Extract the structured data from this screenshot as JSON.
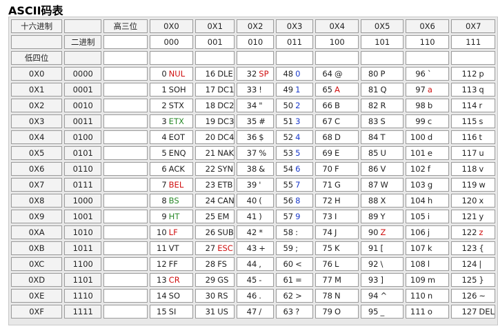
{
  "title": "ASCII码表",
  "colors": {
    "red": "#d01010",
    "green": "#2b8a2b",
    "blue": "#1a3acc"
  },
  "header": {
    "hex_label": "十六进制",
    "bin_label": "二进制",
    "high_label": "高三位",
    "low_label": "低四位",
    "columns": [
      {
        "hex": "0X0",
        "bin": "000"
      },
      {
        "hex": "0X1",
        "bin": "001"
      },
      {
        "hex": "0X2",
        "bin": "010"
      },
      {
        "hex": "0X3",
        "bin": "011"
      },
      {
        "hex": "0X4",
        "bin": "100"
      },
      {
        "hex": "0X5",
        "bin": "101"
      },
      {
        "hex": "0X6",
        "bin": "110"
      },
      {
        "hex": "0X7",
        "bin": "111"
      }
    ]
  },
  "rows": [
    {
      "hex": "0X0",
      "bin": "0000",
      "cells": [
        {
          "n": "0",
          "s": "NUL",
          "c": "red"
        },
        {
          "n": "16",
          "s": "DLE"
        },
        {
          "n": "32",
          "s": "SP",
          "c": "red"
        },
        {
          "n": "48",
          "s": "0",
          "c": "blue"
        },
        {
          "n": "64",
          "s": "@"
        },
        {
          "n": "80",
          "s": "P"
        },
        {
          "n": "96",
          "s": "`"
        },
        {
          "n": "112",
          "s": "p"
        }
      ]
    },
    {
      "hex": "0X1",
      "bin": "0001",
      "cells": [
        {
          "n": "1",
          "s": "SOH"
        },
        {
          "n": "17",
          "s": "DC1"
        },
        {
          "n": "33",
          "s": "!"
        },
        {
          "n": "49",
          "s": "1",
          "c": "blue"
        },
        {
          "n": "65",
          "s": "A",
          "c": "red"
        },
        {
          "n": "81",
          "s": "Q"
        },
        {
          "n": "97",
          "s": "a",
          "c": "red"
        },
        {
          "n": "113",
          "s": "q"
        }
      ]
    },
    {
      "hex": "0X2",
      "bin": "0010",
      "cells": [
        {
          "n": "2",
          "s": "STX"
        },
        {
          "n": "18",
          "s": "DC2"
        },
        {
          "n": "34",
          "s": "\""
        },
        {
          "n": "50",
          "s": "2",
          "c": "blue"
        },
        {
          "n": "66",
          "s": "B"
        },
        {
          "n": "82",
          "s": "R"
        },
        {
          "n": "98",
          "s": "b"
        },
        {
          "n": "114",
          "s": "r"
        }
      ]
    },
    {
      "hex": "0X3",
      "bin": "0011",
      "cells": [
        {
          "n": "3",
          "s": "ETX",
          "c": "green"
        },
        {
          "n": "19",
          "s": "DC3"
        },
        {
          "n": "35",
          "s": "#"
        },
        {
          "n": "51",
          "s": "3",
          "c": "blue"
        },
        {
          "n": "67",
          "s": "C"
        },
        {
          "n": "83",
          "s": "S"
        },
        {
          "n": "99",
          "s": "c"
        },
        {
          "n": "115",
          "s": "s"
        }
      ]
    },
    {
      "hex": "0X4",
      "bin": "0100",
      "cells": [
        {
          "n": "4",
          "s": "EOT"
        },
        {
          "n": "20",
          "s": "DC4"
        },
        {
          "n": "36",
          "s": "$"
        },
        {
          "n": "52",
          "s": "4",
          "c": "blue"
        },
        {
          "n": "68",
          "s": "D"
        },
        {
          "n": "84",
          "s": "T"
        },
        {
          "n": "100",
          "s": "d"
        },
        {
          "n": "116",
          "s": "t"
        }
      ]
    },
    {
      "hex": "0X5",
      "bin": "0101",
      "cells": [
        {
          "n": "5",
          "s": "ENQ"
        },
        {
          "n": "21",
          "s": "NAK"
        },
        {
          "n": "37",
          "s": "%"
        },
        {
          "n": "53",
          "s": "5",
          "c": "blue"
        },
        {
          "n": "69",
          "s": "E"
        },
        {
          "n": "85",
          "s": "U"
        },
        {
          "n": "101",
          "s": "e"
        },
        {
          "n": "117",
          "s": "u"
        }
      ]
    },
    {
      "hex": "0X6",
      "bin": "0110",
      "cells": [
        {
          "n": "6",
          "s": "ACK"
        },
        {
          "n": "22",
          "s": "SYN"
        },
        {
          "n": "38",
          "s": "&"
        },
        {
          "n": "54",
          "s": "6",
          "c": "blue"
        },
        {
          "n": "70",
          "s": "F"
        },
        {
          "n": "86",
          "s": "V"
        },
        {
          "n": "102",
          "s": "f"
        },
        {
          "n": "118",
          "s": "v"
        }
      ]
    },
    {
      "hex": "0X7",
      "bin": "0111",
      "cells": [
        {
          "n": "7",
          "s": "BEL",
          "c": "red"
        },
        {
          "n": "23",
          "s": "ETB"
        },
        {
          "n": "39",
          "s": "'"
        },
        {
          "n": "55",
          "s": "7",
          "c": "blue"
        },
        {
          "n": "71",
          "s": "G"
        },
        {
          "n": "87",
          "s": "W"
        },
        {
          "n": "103",
          "s": "g"
        },
        {
          "n": "119",
          "s": "w"
        }
      ]
    },
    {
      "hex": "0X8",
      "bin": "1000",
      "cells": [
        {
          "n": "8",
          "s": "BS",
          "c": "green"
        },
        {
          "n": "24",
          "s": "CAN"
        },
        {
          "n": "40",
          "s": "("
        },
        {
          "n": "56",
          "s": "8",
          "c": "blue"
        },
        {
          "n": "72",
          "s": "H"
        },
        {
          "n": "88",
          "s": "X"
        },
        {
          "n": "104",
          "s": "h"
        },
        {
          "n": "120",
          "s": "x"
        }
      ]
    },
    {
      "hex": "0X9",
      "bin": "1001",
      "cells": [
        {
          "n": "9",
          "s": "HT",
          "c": "green"
        },
        {
          "n": "25",
          "s": "EM"
        },
        {
          "n": "41",
          "s": ")"
        },
        {
          "n": "57",
          "s": "9",
          "c": "blue"
        },
        {
          "n": "73",
          "s": "I"
        },
        {
          "n": "89",
          "s": "Y"
        },
        {
          "n": "105",
          "s": "i"
        },
        {
          "n": "121",
          "s": "y"
        }
      ]
    },
    {
      "hex": "0XA",
      "bin": "1010",
      "cells": [
        {
          "n": "10",
          "s": "LF",
          "c": "red"
        },
        {
          "n": "26",
          "s": "SUB"
        },
        {
          "n": "42",
          "s": "*"
        },
        {
          "n": "58",
          "s": ":"
        },
        {
          "n": "74",
          "s": "J"
        },
        {
          "n": "90",
          "s": "Z",
          "c": "red"
        },
        {
          "n": "106",
          "s": "j"
        },
        {
          "n": "122",
          "s": "z",
          "c": "red"
        }
      ]
    },
    {
      "hex": "0XB",
      "bin": "1011",
      "cells": [
        {
          "n": "11",
          "s": "VT"
        },
        {
          "n": "27",
          "s": "ESC",
          "c": "red"
        },
        {
          "n": "43",
          "s": "+"
        },
        {
          "n": "59",
          "s": ";"
        },
        {
          "n": "75",
          "s": "K"
        },
        {
          "n": "91",
          "s": "["
        },
        {
          "n": "107",
          "s": "k"
        },
        {
          "n": "123",
          "s": "{"
        }
      ]
    },
    {
      "hex": "0XC",
      "bin": "1100",
      "cells": [
        {
          "n": "12",
          "s": "FF"
        },
        {
          "n": "28",
          "s": "FS"
        },
        {
          "n": "44",
          "s": ","
        },
        {
          "n": "60",
          "s": "<"
        },
        {
          "n": "76",
          "s": "L"
        },
        {
          "n": "92",
          "s": "\\"
        },
        {
          "n": "108",
          "s": "l"
        },
        {
          "n": "124",
          "s": "|"
        }
      ]
    },
    {
      "hex": "0XD",
      "bin": "1101",
      "cells": [
        {
          "n": "13",
          "s": "CR",
          "c": "red"
        },
        {
          "n": "29",
          "s": "GS"
        },
        {
          "n": "45",
          "s": "-"
        },
        {
          "n": "61",
          "s": "="
        },
        {
          "n": "77",
          "s": "M"
        },
        {
          "n": "93",
          "s": "]"
        },
        {
          "n": "109",
          "s": "m"
        },
        {
          "n": "125",
          "s": "}"
        }
      ]
    },
    {
      "hex": "0XE",
      "bin": "1110",
      "cells": [
        {
          "n": "14",
          "s": "SO"
        },
        {
          "n": "30",
          "s": "RS"
        },
        {
          "n": "46",
          "s": "."
        },
        {
          "n": "62",
          "s": ">"
        },
        {
          "n": "78",
          "s": "N"
        },
        {
          "n": "94",
          "s": "^"
        },
        {
          "n": "110",
          "s": "n"
        },
        {
          "n": "126",
          "s": "~"
        }
      ]
    },
    {
      "hex": "0XF",
      "bin": "1111",
      "cells": [
        {
          "n": "15",
          "s": "SI"
        },
        {
          "n": "31",
          "s": "US"
        },
        {
          "n": "47",
          "s": "/"
        },
        {
          "n": "63",
          "s": "?"
        },
        {
          "n": "79",
          "s": "O"
        },
        {
          "n": "95",
          "s": "_"
        },
        {
          "n": "111",
          "s": "o"
        },
        {
          "n": "127",
          "s": "DEL"
        }
      ]
    }
  ]
}
